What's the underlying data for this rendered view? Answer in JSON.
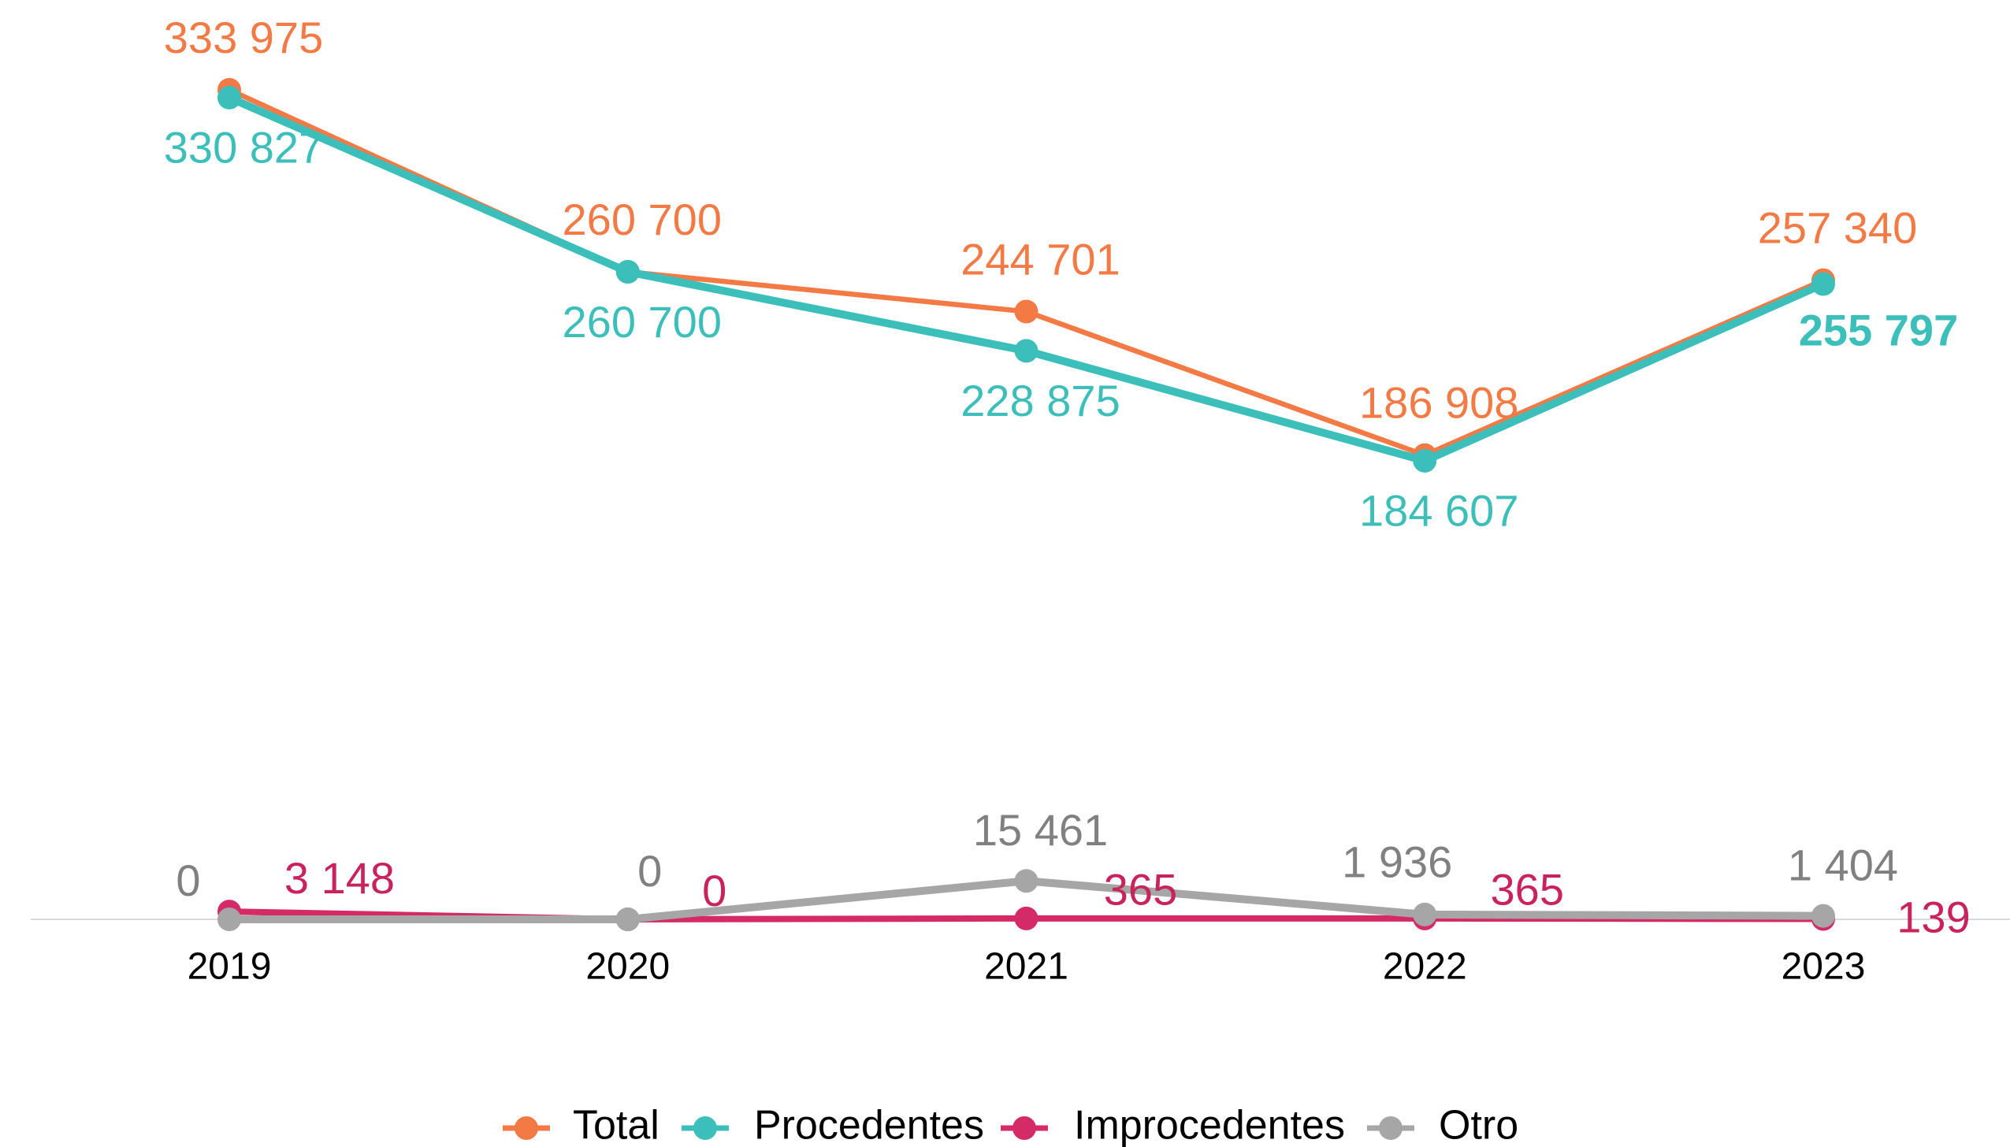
{
  "chart_data": {
    "type": "line",
    "categories": [
      "2019",
      "2020",
      "2021",
      "2022",
      "2023"
    ],
    "ylim": [
      0,
      340000
    ],
    "legend": "bottom",
    "series": [
      {
        "name": "Total",
        "color": "#f47a45",
        "values": [
          333975,
          260700,
          244701,
          186908,
          257340
        ],
        "value_labels": [
          "333 975",
          "260 700",
          "244 701",
          "186 908",
          "257 340"
        ]
      },
      {
        "name": "Procedentes",
        "color": "#3cbfba",
        "values": [
          330827,
          260700,
          228875,
          184607,
          255797
        ],
        "value_labels": [
          "330 827",
          "260 700",
          "228 875",
          "184 607",
          "255 797"
        ]
      },
      {
        "name": "Improcedentes",
        "color": "#d42a66",
        "values": [
          3148,
          0,
          365,
          365,
          139
        ],
        "value_labels": [
          "3 148",
          "0",
          "365",
          "365",
          "139"
        ]
      },
      {
        "name": "Otro",
        "color": "#a6a6a6",
        "values": [
          0,
          0,
          15461,
          1936,
          1404
        ],
        "value_labels": [
          "0",
          "0",
          "15 461",
          "1 936",
          "1 404"
        ]
      }
    ]
  }
}
